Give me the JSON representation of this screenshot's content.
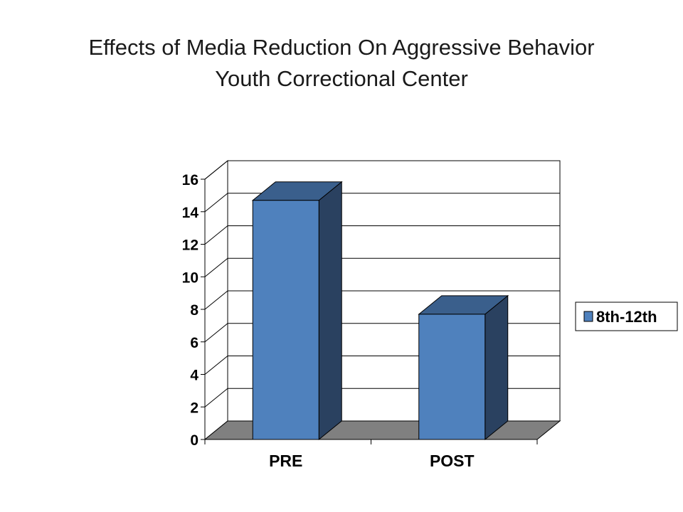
{
  "title": {
    "line1": "Effects of Media Reduction On Aggressive Behavior",
    "line2": "Youth Correctional Center"
  },
  "chart_data": {
    "type": "bar",
    "style": "3d-column",
    "categories": [
      "PRE",
      "POST"
    ],
    "series": [
      {
        "name": "8th-12th",
        "values": [
          14.7,
          7.7
        ]
      }
    ],
    "ylim": [
      0,
      16
    ],
    "yticks": [
      0,
      2,
      4,
      6,
      8,
      10,
      12,
      14,
      16
    ],
    "xlabel": "",
    "ylabel": "",
    "grid": true,
    "legend": "right",
    "colors": {
      "bar_front": "#4F81BD",
      "bar_top": "#3A5F8C",
      "bar_side": "#2A4160",
      "floor": "#808080",
      "grid": "#000000"
    }
  }
}
